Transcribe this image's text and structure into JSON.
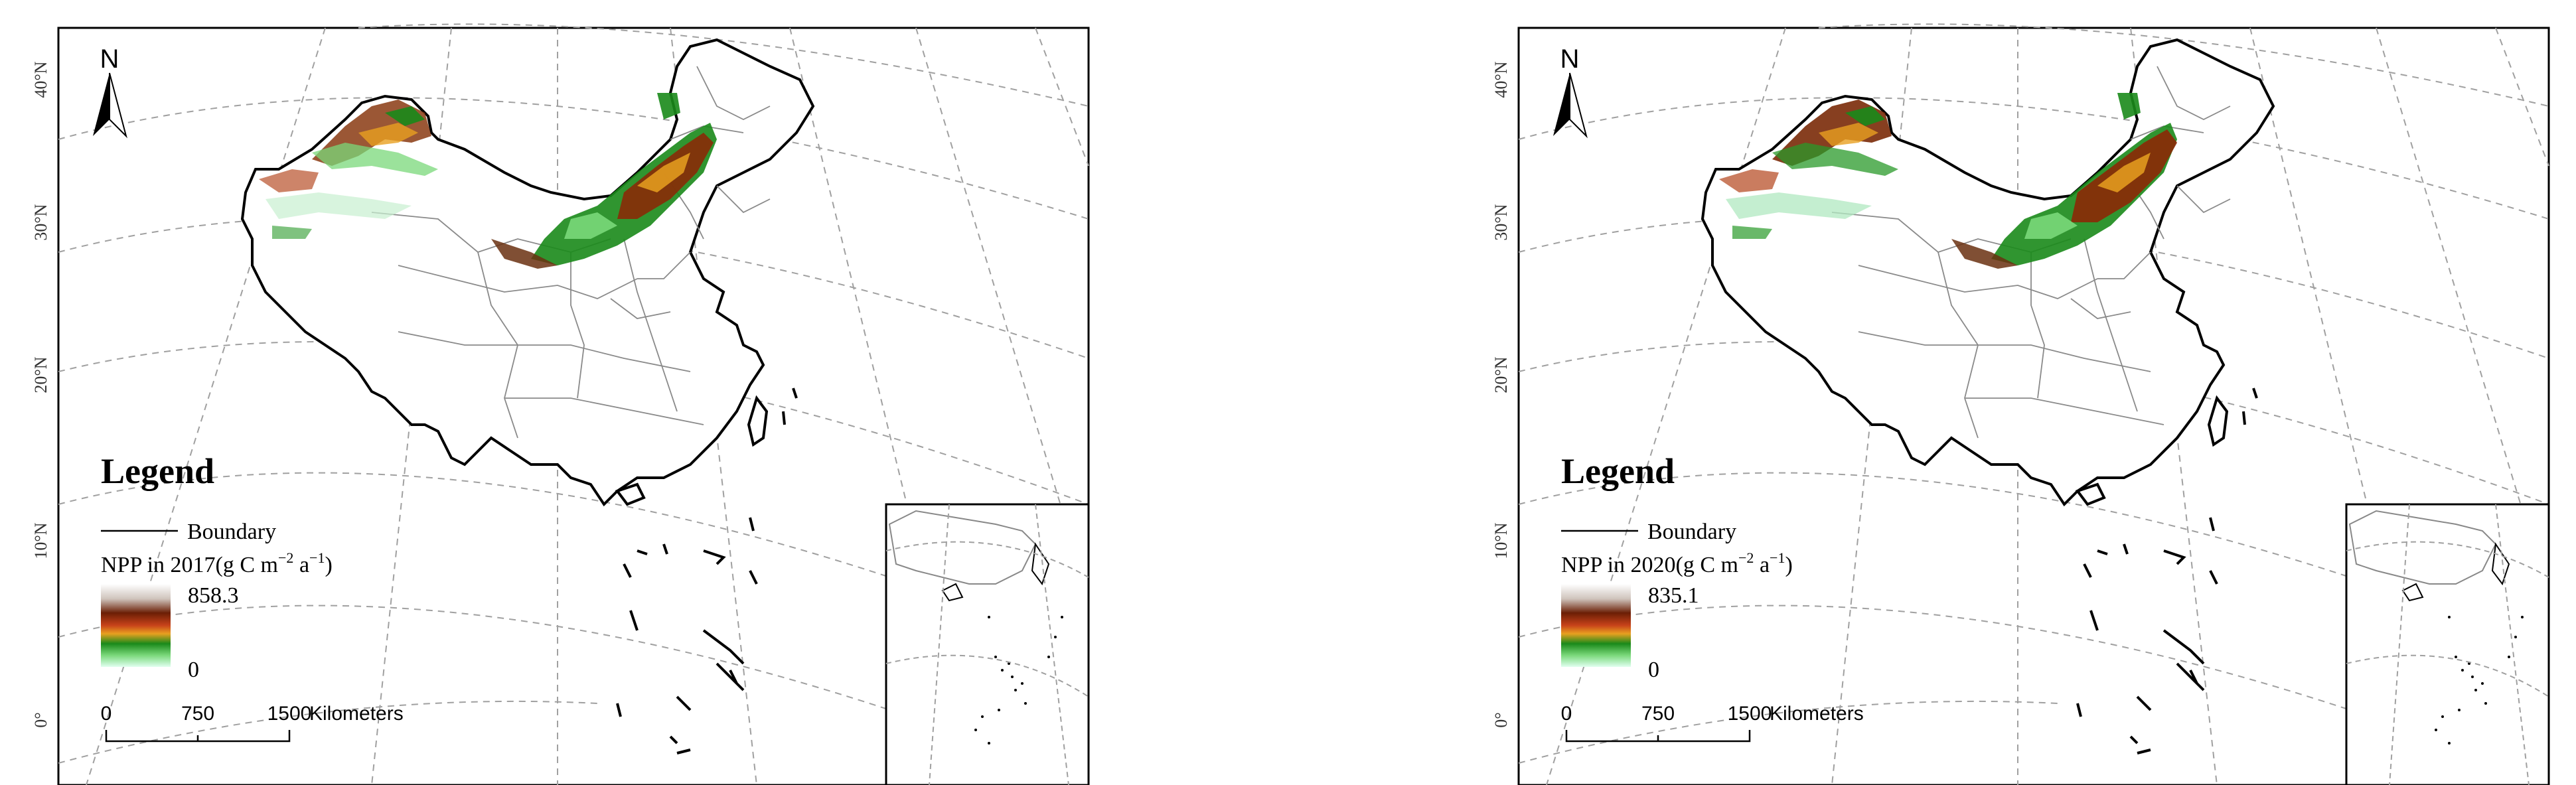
{
  "maps": [
    {
      "id": "npp-2017",
      "north_label": "N",
      "lat_labels": [
        "40°N",
        "30°N",
        "20°N",
        "10°N",
        "0°"
      ],
      "legend": {
        "title": "Legend",
        "boundary_label": "Boundary",
        "npp_label_prefix": "NPP in 2017(g C m",
        "npp_exp1": "−2",
        "npp_mid": " a",
        "npp_exp2": "−1",
        "npp_suffix": ")",
        "max_value": "858.3",
        "min_value": "0"
      },
      "scale": {
        "ticks": [
          "0",
          "750",
          "1500"
        ],
        "unit": "Kilometers"
      }
    },
    {
      "id": "npp-2020",
      "north_label": "N",
      "lat_labels": [
        "40°N",
        "30°N",
        "20°N",
        "10°N",
        "0°"
      ],
      "legend": {
        "title": "Legend",
        "boundary_label": "Boundary",
        "npp_label_prefix": "NPP in 2020(g C m",
        "npp_exp1": "−2",
        "npp_mid": " a",
        "npp_exp2": "−1",
        "npp_suffix": ")",
        "max_value": "835.1",
        "min_value": "0"
      },
      "scale": {
        "ticks": [
          "0",
          "750",
          "1500"
        ],
        "unit": "Kilometers"
      }
    }
  ],
  "colors": {
    "ramp": [
      "#ffffff",
      "#d9d0c8",
      "#7a3a1a",
      "#6a1a00",
      "#c8431a",
      "#e8a020",
      "#1a8a1a",
      "#7ad87a",
      "#d8ffe8"
    ],
    "boundary": "#000000",
    "province": "#888888",
    "graticule": "#999999"
  }
}
